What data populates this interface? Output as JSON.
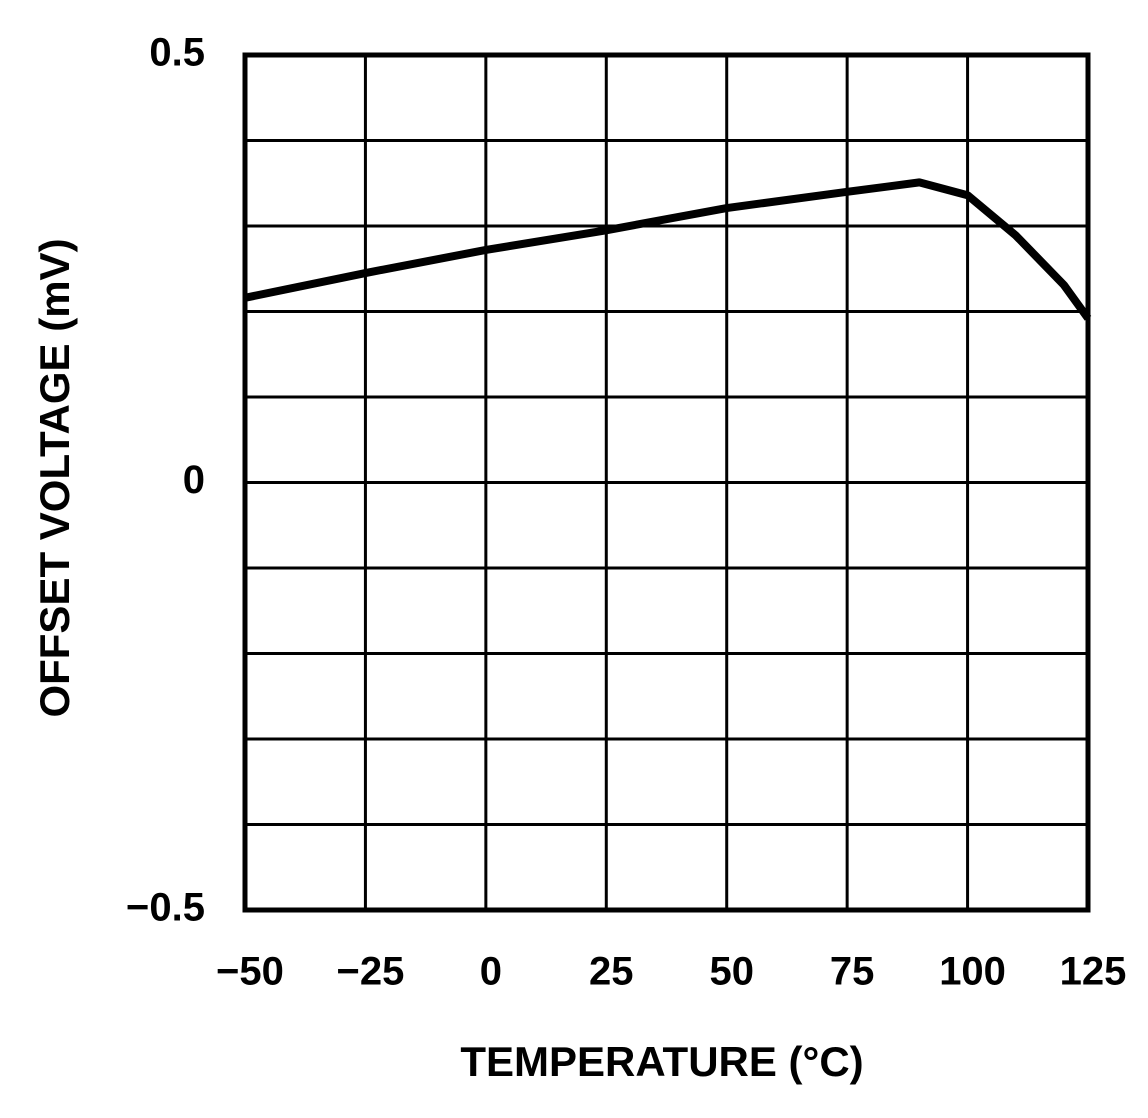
{
  "chart_data": {
    "type": "line",
    "x_label": "TEMPERATURE (°C)",
    "y_label": "OFFSET VOLTAGE (mV)",
    "x": [
      -50,
      -25,
      0,
      25,
      50,
      75,
      90,
      100,
      110,
      120,
      125
    ],
    "series": [
      {
        "color": "#000000",
        "values": [
          0.216,
          0.245,
          0.272,
          0.295,
          0.321,
          0.34,
          0.351,
          0.336,
          0.289,
          0.231,
          0.192
        ]
      }
    ],
    "xlim": [
      -50,
      125
    ],
    "xticks": [
      {
        "value": -50,
        "label": "−50"
      },
      {
        "value": -25,
        "label": "−25"
      },
      0,
      25,
      50,
      75,
      100,
      125
    ],
    "ylim": [
      -0.5,
      0.5
    ],
    "yticks": [
      {
        "value": -0.5,
        "label": "−0.5"
      },
      0,
      0.5
    ],
    "y_minor_ticks": [
      -0.4,
      -0.3,
      -0.2,
      -0.1,
      0.1,
      0.2,
      0.3,
      0.4
    ],
    "grid": true
  }
}
